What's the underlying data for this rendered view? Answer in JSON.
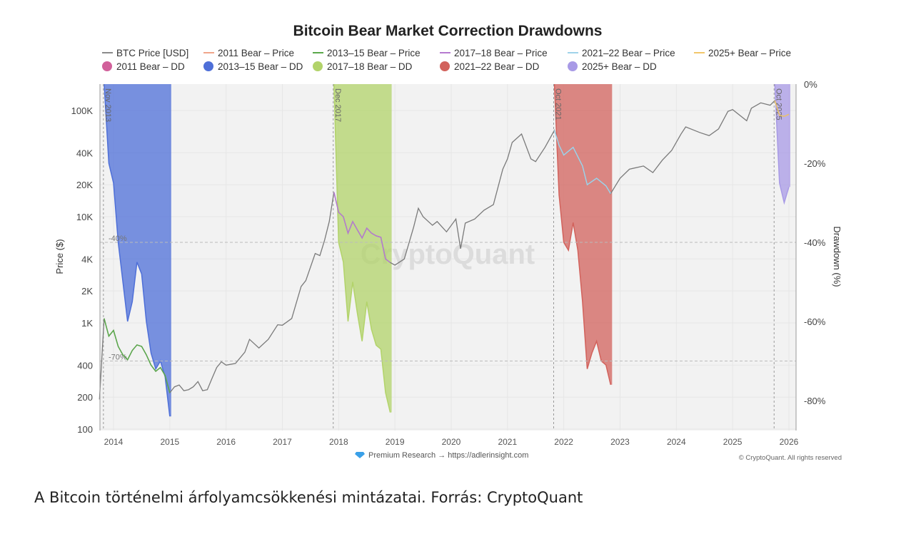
{
  "caption": "A Bitcoin történelmi árfolyamcsökkenési mintázatai. Forrás: CryptoQuant",
  "chart_data": {
    "type": "line",
    "title": "Bitcoin Bear Market Correction Drawdowns",
    "ylabel": "Price ($)",
    "y2label": "Drawdown (%)",
    "watermark": "CryptoQuant",
    "footer_left": "Premium Research → https://adlerinsight.com",
    "footer_right": "© CryptoQuant. All rights reserved",
    "y_scale": "log",
    "ylim": [
      100,
      150000
    ],
    "y2lim": [
      -87,
      0
    ],
    "x_range": [
      "2013-10",
      "2026-02"
    ],
    "y_ticks": [
      {
        "v": 100,
        "label": "100"
      },
      {
        "v": 200,
        "label": "200"
      },
      {
        "v": 400,
        "label": "400"
      },
      {
        "v": 1000,
        "label": "1K"
      },
      {
        "v": 2000,
        "label": "2K"
      },
      {
        "v": 4000,
        "label": "4K"
      },
      {
        "v": 10000,
        "label": "10K"
      },
      {
        "v": 20000,
        "label": "20K"
      },
      {
        "v": 40000,
        "label": "40K"
      },
      {
        "v": 100000,
        "label": "100K"
      }
    ],
    "y2_ticks": [
      {
        "v": 0,
        "label": "0%"
      },
      {
        "v": -20,
        "label": "-20%"
      },
      {
        "v": -40,
        "label": "-40%"
      },
      {
        "v": -60,
        "label": "-60%"
      },
      {
        "v": -80,
        "label": "-80%"
      }
    ],
    "x_ticks": [
      "2014",
      "2015",
      "2016",
      "2017",
      "2018",
      "2019",
      "2020",
      "2021",
      "2022",
      "2023",
      "2024",
      "2025",
      "2026"
    ],
    "reference_lines": [
      {
        "v": -40,
        "label": "-40%"
      },
      {
        "v": -70,
        "label": "-70%"
      }
    ],
    "legend": [
      {
        "name": "BTC Price [USD]",
        "kind": "line",
        "color": "#8a8a8a"
      },
      {
        "name": "2011 Bear – Price",
        "kind": "line",
        "color": "#f0a58a"
      },
      {
        "name": "2013–15 Bear – Price",
        "kind": "line",
        "color": "#5aa84a"
      },
      {
        "name": "2017–18 Bear – Price",
        "kind": "line",
        "color": "#b57ad0"
      },
      {
        "name": "2021–22 Bear – Price",
        "kind": "line",
        "color": "#9fd3ea"
      },
      {
        "name": "2025+ Bear – Price",
        "kind": "line",
        "color": "#f2c76b"
      },
      {
        "name": "2011 Bear – DD",
        "kind": "dot",
        "color": "#d1609a"
      },
      {
        "name": "2013–15 Bear – DD",
        "kind": "dot",
        "color": "#4e6fd8"
      },
      {
        "name": "2017–18 Bear – DD",
        "kind": "dot",
        "color": "#b2d36a"
      },
      {
        "name": "2021–22 Bear – DD",
        "kind": "dot",
        "color": "#d2625c"
      },
      {
        "name": "2025+ Bear – DD",
        "kind": "dot",
        "color": "#a89ae6"
      }
    ],
    "price": [
      [
        "2013-10",
        190
      ],
      [
        "2013-11",
        1100
      ],
      [
        "2013-12",
        750
      ],
      [
        "2014-01",
        850
      ],
      [
        "2014-02",
        600
      ],
      [
        "2014-03",
        500
      ],
      [
        "2014-04",
        450
      ],
      [
        "2014-05",
        550
      ],
      [
        "2014-06",
        620
      ],
      [
        "2014-07",
        600
      ],
      [
        "2014-08",
        500
      ],
      [
        "2014-09",
        400
      ],
      [
        "2014-10",
        350
      ],
      [
        "2014-11",
        380
      ],
      [
        "2014-12",
        320
      ],
      [
        "2015-01",
        220
      ],
      [
        "2015-02",
        250
      ],
      [
        "2015-03",
        260
      ],
      [
        "2015-04",
        230
      ],
      [
        "2015-05",
        235
      ],
      [
        "2015-06",
        250
      ],
      [
        "2015-07",
        280
      ],
      [
        "2015-08",
        230
      ],
      [
        "2015-09",
        235
      ],
      [
        "2015-10",
        300
      ],
      [
        "2015-11",
        380
      ],
      [
        "2015-12",
        430
      ],
      [
        "2016-01",
        400
      ],
      [
        "2016-03",
        415
      ],
      [
        "2016-05",
        530
      ],
      [
        "2016-06",
        700
      ],
      [
        "2016-08",
        580
      ],
      [
        "2016-10",
        700
      ],
      [
        "2016-12",
        960
      ],
      [
        "2017-01",
        950
      ],
      [
        "2017-03",
        1100
      ],
      [
        "2017-05",
        2200
      ],
      [
        "2017-06",
        2500
      ],
      [
        "2017-08",
        4500
      ],
      [
        "2017-09",
        4300
      ],
      [
        "2017-10",
        6000
      ],
      [
        "2017-11",
        9000
      ],
      [
        "2017-12",
        17000
      ],
      [
        "2018-01",
        11000
      ],
      [
        "2018-02",
        10000
      ],
      [
        "2018-03",
        7000
      ],
      [
        "2018-04",
        9000
      ],
      [
        "2018-05",
        7500
      ],
      [
        "2018-06",
        6300
      ],
      [
        "2018-07",
        7800
      ],
      [
        "2018-08",
        7000
      ],
      [
        "2018-09",
        6600
      ],
      [
        "2018-10",
        6400
      ],
      [
        "2018-11",
        4000
      ],
      [
        "2018-12",
        3700
      ],
      [
        "2019-01",
        3500
      ],
      [
        "2019-03",
        4000
      ],
      [
        "2019-05",
        8000
      ],
      [
        "2019-06",
        12000
      ],
      [
        "2019-07",
        10000
      ],
      [
        "2019-09",
        8300
      ],
      [
        "2019-10",
        9000
      ],
      [
        "2019-12",
        7200
      ],
      [
        "2020-02",
        9500
      ],
      [
        "2020-03",
        5000
      ],
      [
        "2020-04",
        8700
      ],
      [
        "2020-06",
        9500
      ],
      [
        "2020-08",
        11500
      ],
      [
        "2020-10",
        13000
      ],
      [
        "2020-12",
        28000
      ],
      [
        "2021-01",
        35000
      ],
      [
        "2021-02",
        50000
      ],
      [
        "2021-04",
        60000
      ],
      [
        "2021-06",
        35000
      ],
      [
        "2021-07",
        33000
      ],
      [
        "2021-09",
        45000
      ],
      [
        "2021-11",
        65000
      ],
      [
        "2021-12",
        47000
      ],
      [
        "2022-01",
        38000
      ],
      [
        "2022-03",
        45000
      ],
      [
        "2022-05",
        30000
      ],
      [
        "2022-06",
        20000
      ],
      [
        "2022-08",
        23000
      ],
      [
        "2022-10",
        19500
      ],
      [
        "2022-11",
        16500
      ],
      [
        "2023-01",
        23000
      ],
      [
        "2023-03",
        28000
      ],
      [
        "2023-06",
        30000
      ],
      [
        "2023-08",
        26000
      ],
      [
        "2023-10",
        34000
      ],
      [
        "2023-12",
        42000
      ],
      [
        "2024-02",
        60000
      ],
      [
        "2024-03",
        70000
      ],
      [
        "2024-06",
        62000
      ],
      [
        "2024-08",
        58000
      ],
      [
        "2024-10",
        67000
      ],
      [
        "2024-12",
        98000
      ],
      [
        "2025-01",
        102000
      ],
      [
        "2025-04",
        80000
      ],
      [
        "2025-05",
        105000
      ],
      [
        "2025-07",
        118000
      ],
      [
        "2025-09",
        112000
      ],
      [
        "2025-10",
        124000
      ],
      [
        "2025-11",
        90000
      ],
      [
        "2025-12",
        88000
      ],
      [
        "2026-01",
        92000
      ]
    ],
    "bears": [
      {
        "name": "2013–15",
        "label": "Nov 2013",
        "start": "2013-11",
        "end": "2015-01",
        "price_color": "#5aa84a",
        "dd_color": "#4e6fd8",
        "dd": [
          [
            "2013-11",
            0
          ],
          [
            "2013-12",
            -20
          ],
          [
            "2014-01",
            -25
          ],
          [
            "2014-02",
            -40
          ],
          [
            "2014-03",
            -50
          ],
          [
            "2014-04",
            -60
          ],
          [
            "2014-05",
            -55
          ],
          [
            "2014-06",
            -45
          ],
          [
            "2014-07",
            -48
          ],
          [
            "2014-08",
            -60
          ],
          [
            "2014-09",
            -68
          ],
          [
            "2014-10",
            -72
          ],
          [
            "2014-11",
            -70
          ],
          [
            "2014-12",
            -74
          ],
          [
            "2015-01",
            -84
          ]
        ]
      },
      {
        "name": "2017–18",
        "label": "Dec 2017",
        "start": "2017-12",
        "end": "2018-12",
        "price_color": "#b57ad0",
        "dd_color": "#b2d36a",
        "dd": [
          [
            "2017-12",
            0
          ],
          [
            "2018-01",
            -40
          ],
          [
            "2018-02",
            -45
          ],
          [
            "2018-03",
            -60
          ],
          [
            "2018-04",
            -50
          ],
          [
            "2018-05",
            -58
          ],
          [
            "2018-06",
            -65
          ],
          [
            "2018-07",
            -55
          ],
          [
            "2018-08",
            -62
          ],
          [
            "2018-09",
            -66
          ],
          [
            "2018-10",
            -67
          ],
          [
            "2018-11",
            -78
          ],
          [
            "2018-12",
            -83
          ]
        ]
      },
      {
        "name": "2021–22",
        "label": "Oct 2021",
        "start": "2021-11",
        "end": "2022-11",
        "price_color": "#9fd3ea",
        "dd_color": "#d2625c",
        "dd": [
          [
            "2021-11",
            0
          ],
          [
            "2021-12",
            -28
          ],
          [
            "2022-01",
            -40
          ],
          [
            "2022-02",
            -42
          ],
          [
            "2022-03",
            -35
          ],
          [
            "2022-04",
            -42
          ],
          [
            "2022-05",
            -55
          ],
          [
            "2022-06",
            -72
          ],
          [
            "2022-07",
            -68
          ],
          [
            "2022-08",
            -65
          ],
          [
            "2022-09",
            -70
          ],
          [
            "2022-10",
            -71
          ],
          [
            "2022-11",
            -76
          ]
        ]
      },
      {
        "name": "2025+",
        "label": "Oct 2025",
        "start": "2025-10",
        "end": "2026-01",
        "price_color": "#f2c76b",
        "dd_color": "#a89ae6",
        "dd": [
          [
            "2025-10",
            0
          ],
          [
            "2025-11",
            -25
          ],
          [
            "2025-12",
            -30
          ],
          [
            "2026-01",
            -26
          ]
        ]
      }
    ]
  }
}
